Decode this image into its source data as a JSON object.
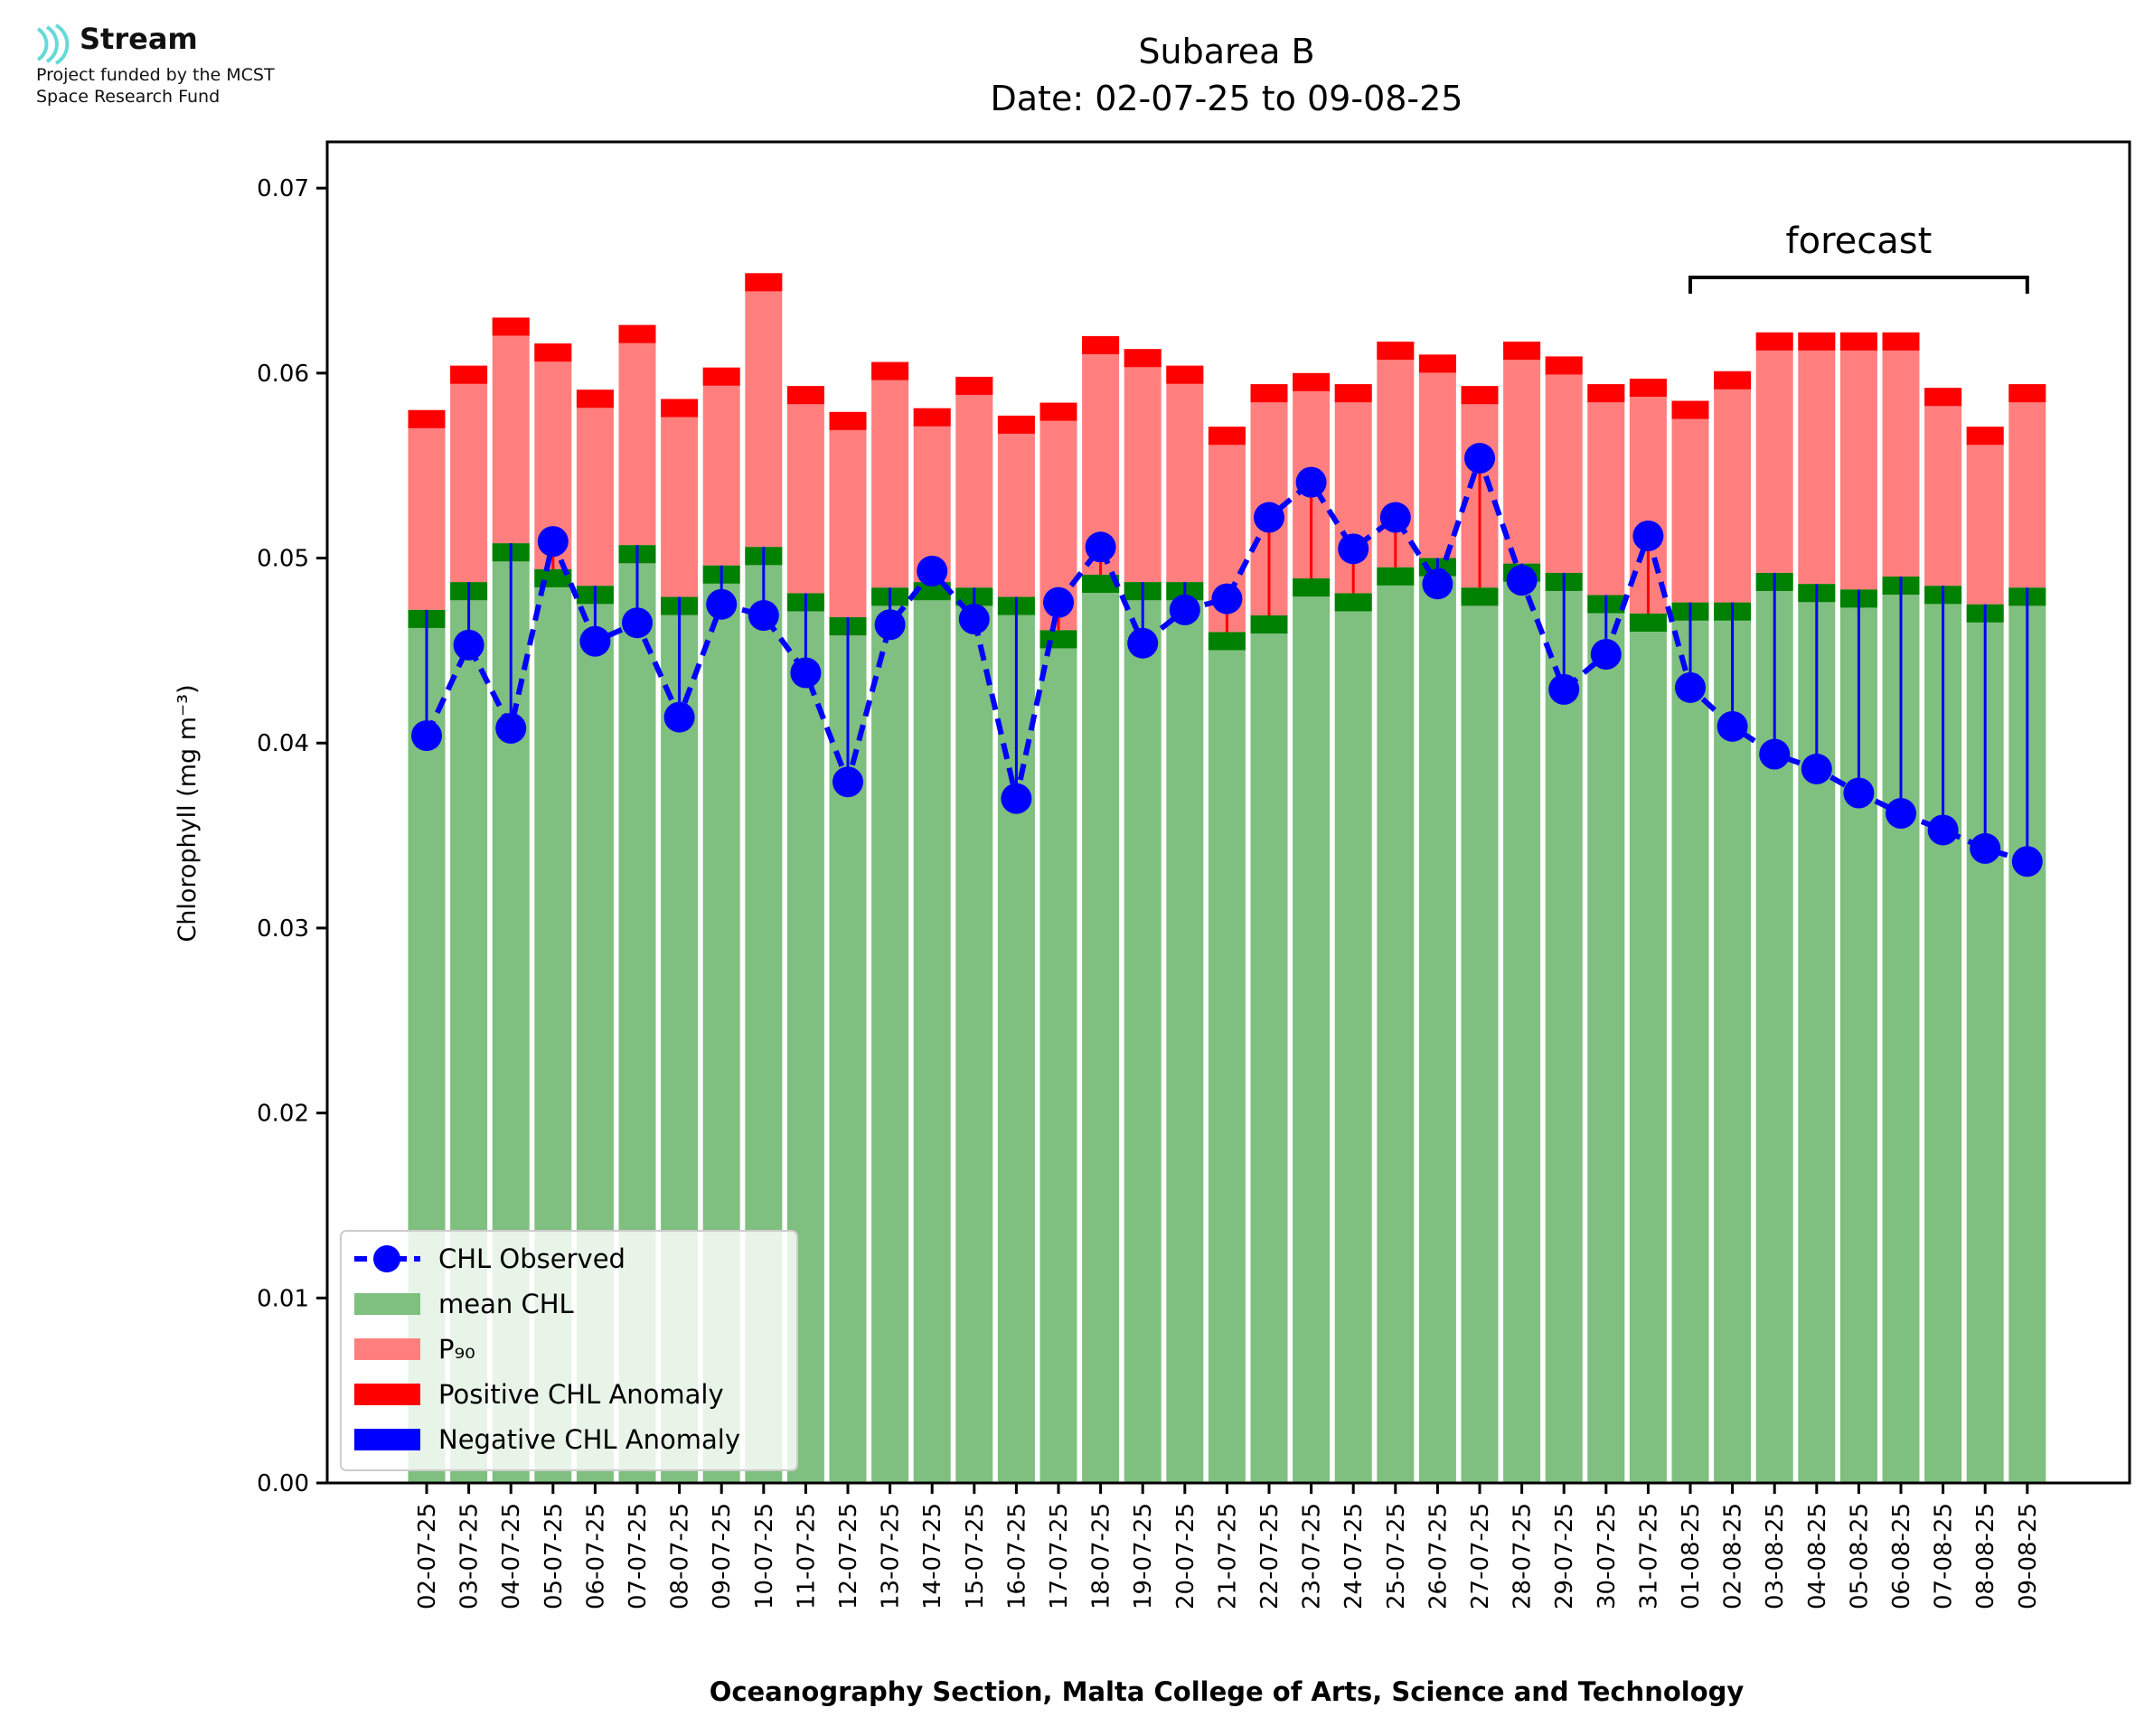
{
  "logo": {
    "name": "Stream",
    "line1": "Project funded by the MCST",
    "line2": "Space Research Fund"
  },
  "chart_data": {
    "type": "bar",
    "title": "Subarea B",
    "subtitle": "Date: 02-07-25 to 09-08-25",
    "xlabel": "Oceanography Section, Malta College of Arts, Science and Technology",
    "ylabel": "Chlorophyll (mg m⁻³)",
    "ylim": [
      0,
      0.0725
    ],
    "yticks": [
      "0.00",
      "0.01",
      "0.02",
      "0.03",
      "0.04",
      "0.05",
      "0.06",
      "0.07"
    ],
    "grid": false,
    "legend_position": "lower-left",
    "annotation": "forecast",
    "forecast_range": [
      "01-08-25",
      "09-08-25"
    ],
    "categories": [
      "02-07-25",
      "03-07-25",
      "04-07-25",
      "05-07-25",
      "06-07-25",
      "07-07-25",
      "08-07-25",
      "09-07-25",
      "10-07-25",
      "11-07-25",
      "12-07-25",
      "13-07-25",
      "14-07-25",
      "15-07-25",
      "16-07-25",
      "17-07-25",
      "18-07-25",
      "19-07-25",
      "20-07-25",
      "21-07-25",
      "22-07-25",
      "23-07-25",
      "24-07-25",
      "25-07-25",
      "26-07-25",
      "27-07-25",
      "28-07-25",
      "29-07-25",
      "30-07-25",
      "31-07-25",
      "01-08-25",
      "02-08-25",
      "03-08-25",
      "04-08-25",
      "05-08-25",
      "06-08-25",
      "07-08-25",
      "08-08-25",
      "09-08-25"
    ],
    "series": [
      {
        "name": "CHL Observed",
        "color": "#0000ff",
        "values": [
          0.0404,
          0.0453,
          0.0408,
          0.0509,
          0.0455,
          0.0465,
          0.0414,
          0.0475,
          0.0469,
          0.0438,
          0.0379,
          0.0464,
          0.0493,
          0.0467,
          0.037,
          0.0476,
          0.0506,
          0.0454,
          0.0472,
          0.0478,
          0.0522,
          0.0541,
          0.0505,
          0.0522,
          0.0486,
          0.0554,
          0.0488,
          0.0429,
          0.0448,
          0.0512,
          0.043,
          0.0409,
          0.0394,
          0.0386,
          0.0373,
          0.0362,
          0.0353,
          0.0343,
          0.0336
        ]
      },
      {
        "name": "mean CHL",
        "color": "#7fbf7f",
        "edge_color": "#008000",
        "values": [
          0.0472,
          0.0487,
          0.0508,
          0.0494,
          0.0485,
          0.0507,
          0.0479,
          0.0496,
          0.0506,
          0.0481,
          0.0468,
          0.0484,
          0.0487,
          0.0484,
          0.0479,
          0.0461,
          0.0491,
          0.0487,
          0.0487,
          0.046,
          0.0469,
          0.0489,
          0.0481,
          0.0495,
          0.05,
          0.0484,
          0.0497,
          0.0492,
          0.048,
          0.047,
          0.0476,
          0.0476,
          0.0492,
          0.0486,
          0.0483,
          0.049,
          0.0485,
          0.0475,
          0.0484
        ]
      },
      {
        "name": "P₉₀",
        "color": "#ff7f7f",
        "edge_color": "#ff0000",
        "values": [
          0.058,
          0.0604,
          0.063,
          0.0616,
          0.0591,
          0.0626,
          0.0586,
          0.0603,
          0.0654,
          0.0593,
          0.0579,
          0.0606,
          0.0581,
          0.0598,
          0.0577,
          0.0584,
          0.062,
          0.0613,
          0.0604,
          0.0571,
          0.0594,
          0.06,
          0.0594,
          0.0617,
          0.061,
          0.0593,
          0.0617,
          0.0609,
          0.0594,
          0.0597,
          0.0585,
          0.0601,
          0.0622,
          0.0622,
          0.0622,
          0.0622,
          0.0592,
          0.0571,
          0.0594
        ]
      },
      {
        "name": "Positive CHL Anomaly",
        "color": "#ff0000"
      },
      {
        "name": "Negative CHL Anomaly",
        "color": "#0000ff"
      }
    ]
  }
}
